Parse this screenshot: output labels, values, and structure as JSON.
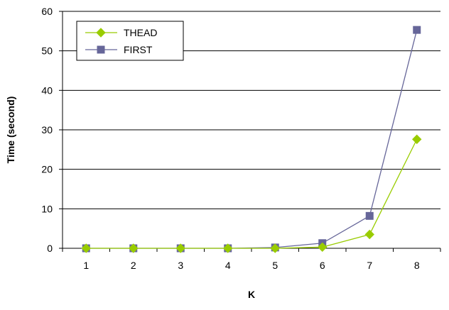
{
  "chart_data": {
    "type": "line",
    "title": "",
    "xlabel": "K",
    "ylabel": "Time (second)",
    "categories": [
      "1",
      "2",
      "3",
      "4",
      "5",
      "6",
      "7",
      "8"
    ],
    "ylim": [
      0,
      60
    ],
    "yticks": [
      "0",
      "10",
      "20",
      "30",
      "40",
      "50",
      "60"
    ],
    "grid": "horizontal",
    "legend_position": "top-left",
    "series": [
      {
        "name": "THEAD",
        "color": "#99cc00",
        "marker": "diamond",
        "values": [
          0,
          0,
          0,
          0,
          0,
          0.3,
          3.5,
          27.6
        ]
      },
      {
        "name": "FIRST",
        "color": "#666699",
        "marker": "square",
        "values": [
          0,
          0,
          0,
          0,
          0.2,
          1.3,
          8.2,
          55.3
        ]
      }
    ]
  }
}
